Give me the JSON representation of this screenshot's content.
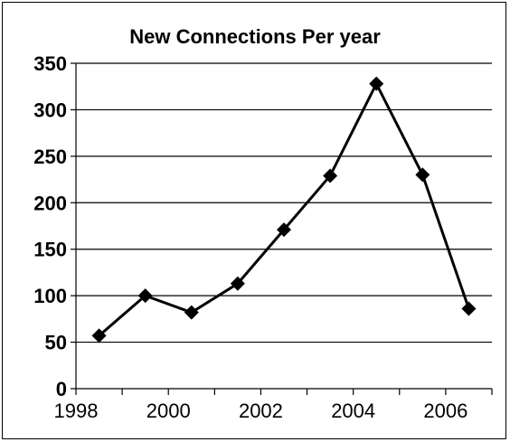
{
  "chart_data": {
    "type": "line",
    "title": "New Connections Per year",
    "xlabel": "",
    "ylabel": "",
    "x": [
      1998,
      1999,
      2000,
      2001,
      2002,
      2003,
      2004,
      2005,
      2006
    ],
    "x_tick_labels": [
      "1998",
      "2000",
      "2002",
      "2004",
      "2006"
    ],
    "y_tick_labels": [
      "0",
      "50",
      "100",
      "150",
      "200",
      "250",
      "300",
      "350"
    ],
    "ylim": [
      0,
      350
    ],
    "grid": "horizontal",
    "legend": "none",
    "series": [
      {
        "values": [
          57,
          100,
          82,
          113,
          171,
          229,
          328,
          230,
          86
        ],
        "color": "#000000",
        "marker": "diamond"
      }
    ]
  }
}
